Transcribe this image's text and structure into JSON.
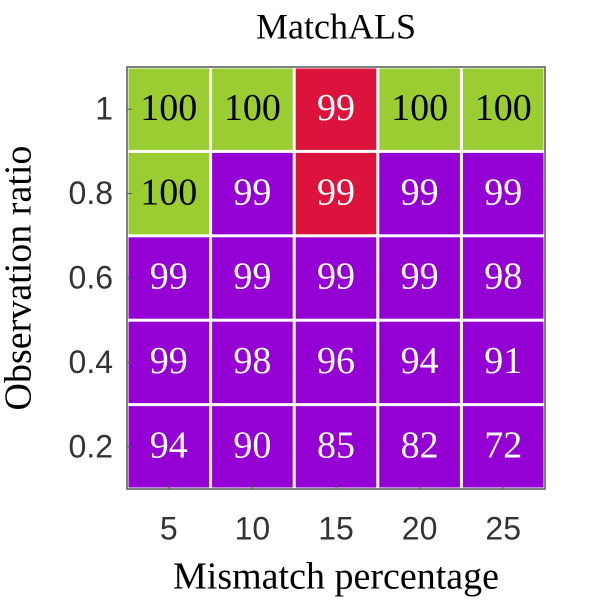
{
  "chart_data": {
    "type": "heatmap",
    "title": "MatchALS",
    "x_label": "Mismatch percentage",
    "y_label": "Observation ratio",
    "x": [
      5,
      10,
      15,
      20,
      25
    ],
    "y": [
      1,
      0.8,
      0.6,
      0.4,
      0.2
    ],
    "xlim": [
      2.5,
      27.5
    ],
    "ylim": [
      0.1,
      1.1
    ],
    "xticks": [
      5,
      10,
      15,
      20,
      25
    ],
    "yticks": [
      0.2,
      0.4,
      0.6,
      0.8,
      1
    ],
    "values": [
      [
        100,
        100,
        99,
        100,
        100
      ],
      [
        100,
        99,
        99,
        99,
        99
      ],
      [
        99,
        99,
        99,
        99,
        98
      ],
      [
        99,
        98,
        96,
        94,
        91
      ],
      [
        94,
        90,
        85,
        82,
        72
      ]
    ],
    "cell_colors": [
      [
        "#9acd32",
        "#9acd32",
        "#dc143c",
        "#9acd32",
        "#9acd32"
      ],
      [
        "#9acd32",
        "#9400d3",
        "#dc143c",
        "#9400d3",
        "#9400d3"
      ],
      [
        "#9400d3",
        "#9400d3",
        "#9400d3",
        "#9400d3",
        "#9400d3"
      ],
      [
        "#9400d3",
        "#9400d3",
        "#9400d3",
        "#9400d3",
        "#9400d3"
      ],
      [
        "#9400d3",
        "#9400d3",
        "#9400d3",
        "#9400d3",
        "#9400d3"
      ]
    ]
  }
}
